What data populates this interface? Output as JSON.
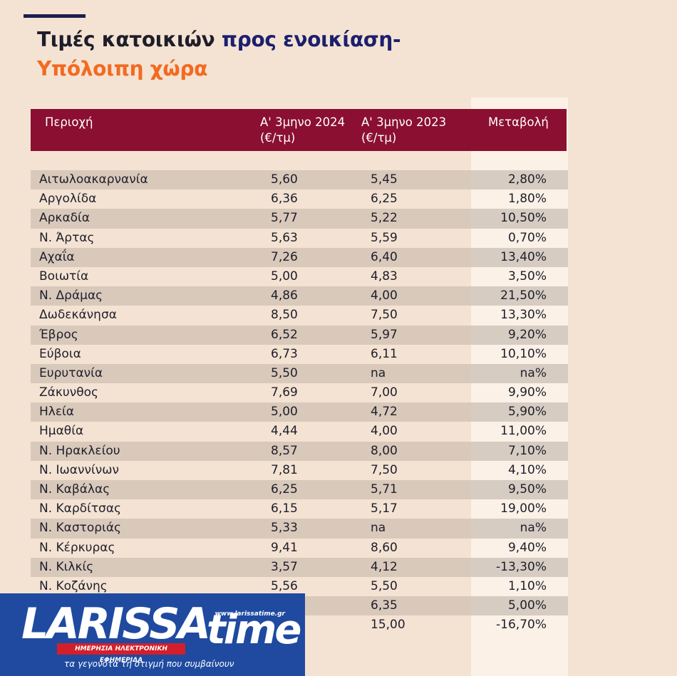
{
  "title": {
    "part1": "Τιμές κατοικιών ",
    "part2": "προς ενοικίαση-",
    "part3": "Υπόλοιπη χώρα"
  },
  "colors": {
    "header": "#8a0f30",
    "accent": "#f26a21",
    "navy": "#1b1f6e",
    "background": "#f4e3d3"
  },
  "chart_data": {
    "type": "table",
    "columns": [
      {
        "line1": "Περιοχή",
        "line2": ""
      },
      {
        "line1": "Α' 3μηνο 2024",
        "line2": "(€/τμ)"
      },
      {
        "line1": "Α' 3μηνο 2023",
        "line2": "(€/τμ)"
      },
      {
        "line1": "Μεταβολή",
        "line2": ""
      }
    ],
    "rows": [
      [
        "Αιτωλοακαρνανία",
        "5,60",
        "5,45",
        "2,80%"
      ],
      [
        "Αργολίδα",
        "6,36",
        "6,25",
        "1,80%"
      ],
      [
        "Αρκαδία",
        "5,77",
        "5,22",
        "10,50%"
      ],
      [
        "Ν. Άρτας",
        "5,63",
        "5,59",
        "0,70%"
      ],
      [
        "Αχαΐα",
        "7,26",
        "6,40",
        "13,40%"
      ],
      [
        "Βοιωτία",
        "5,00",
        "4,83",
        "3,50%"
      ],
      [
        "Ν. Δράμας",
        "4,86",
        "4,00",
        "21,50%"
      ],
      [
        "Δωδεκάνησα",
        "8,50",
        "7,50",
        "13,30%"
      ],
      [
        "Έβρος",
        "6,52",
        "5,97",
        "9,20%"
      ],
      [
        "Εύβοια",
        "6,73",
        "6,11",
        "10,10%"
      ],
      [
        "Ευρυτανία",
        "5,50",
        "na",
        "na%"
      ],
      [
        "Ζάκυνθος",
        "7,69",
        "7,00",
        "9,90%"
      ],
      [
        "Ηλεία",
        "5,00",
        "4,72",
        "5,90%"
      ],
      [
        "Ημαθία",
        "4,44",
        "4,00",
        "11,00%"
      ],
      [
        "Ν. Ηρακλείου",
        "8,57",
        "8,00",
        "7,10%"
      ],
      [
        "Ν. Ιωαννίνων",
        "7,81",
        "7,50",
        "4,10%"
      ],
      [
        "Ν. Καβάλας",
        "6,25",
        "5,71",
        "9,50%"
      ],
      [
        "Ν. Καρδίτσας",
        "6,15",
        "5,17",
        "19,00%"
      ],
      [
        "Ν. Καστοριάς",
        "5,33",
        "na",
        "na%"
      ],
      [
        "Ν. Κέρκυρας",
        "9,41",
        "8,60",
        "9,40%"
      ],
      [
        "Ν. Κιλκίς",
        "3,57",
        "4,12",
        "-13,30%"
      ],
      [
        "Ν. Κοζάνης",
        "5,56",
        "5,50",
        "1,10%"
      ],
      [
        "",
        "",
        "6,35",
        "5,00%"
      ],
      [
        "",
        "",
        "15,00",
        "-16,70%"
      ]
    ]
  },
  "logo": {
    "brand_left": "LARISSA",
    "brand_right": "time",
    "site": "www.larissatime.gr",
    "tagline_banner": "ΗΜΕΡΗΣΙΑ ΗΛΕΚΤΡΟΝΙΚΗ ΕΦΗΜΕΡΙΔΑ",
    "slogan": "τα γεγονότα τη στιγμή που συμβαίνουν"
  }
}
